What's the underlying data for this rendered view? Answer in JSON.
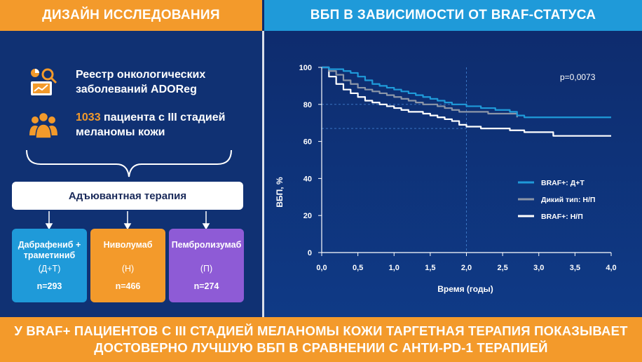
{
  "header": {
    "left_title": "ДИЗАЙН ИССЛЕДОВАНИЯ",
    "right_title": "ВБП В ЗАВИСИМОСТИ ОТ BRAF-СТАТУСА"
  },
  "design": {
    "registry_line1": "Реестр онкологических",
    "registry_line2": "заболеваний ADOReg",
    "patients_count": "1033",
    "patients_line1_rest": " пациента с III стадией",
    "patients_line2": "меланомы кожи",
    "therapy_label": "Адъювантная терапия",
    "arms": [
      {
        "name_line1": "Дабрафениб +",
        "name_line2": "траметиниб",
        "abbr": "(Д+Т)",
        "n": "n=293"
      },
      {
        "name_line1": "Ниволумаб",
        "name_line2": "",
        "abbr": "(Н)",
        "n": "n=466"
      },
      {
        "name_line1": "Пембролизумаб",
        "name_line2": "",
        "abbr": "(П)",
        "n": "n=274"
      }
    ]
  },
  "footer": {
    "line1": "У BRAF+ ПАЦИЕНТОВ С III СТАДИЕЙ МЕЛАНОМЫ КОЖИ ТАРГЕТНАЯ ТЕРАПИЯ ПОКАЗЫВАЕТ",
    "line2": "ДОСТОВЕРНО ЛУЧШУЮ ВБП В СРАВНЕНИИ С АНТИ-PD-1 ТЕРАПИЕЙ"
  },
  "colors": {
    "orange": "#f39a2b",
    "blue": "#1f9ad9",
    "purple": "#8e5bd6",
    "navy": "#103173"
  },
  "chart_data": {
    "type": "line",
    "title": "ВБП В ЗАВИСИМОСТИ ОТ BRAF-СТАТУСА",
    "xlabel": "Время (годы)",
    "ylabel": "ВБП, %",
    "xlim": [
      0,
      4
    ],
    "ylim": [
      0,
      100
    ],
    "xticks": [
      "0,0",
      "0,5",
      "1,0",
      "1,5",
      "2,0",
      "2,5",
      "3,0",
      "3,5",
      "4,0"
    ],
    "yticks": [
      "0",
      "20",
      "40",
      "60",
      "80",
      "100"
    ],
    "annotation": "p=0,0073",
    "legend_position": "right",
    "reference_x": 2.0,
    "series": [
      {
        "name": "BRAF+: Д+Т",
        "color": "#1f9ad9",
        "x": [
          0,
          0.1,
          0.2,
          0.3,
          0.4,
          0.5,
          0.6,
          0.7,
          0.8,
          0.9,
          1.0,
          1.1,
          1.2,
          1.3,
          1.4,
          1.5,
          1.6,
          1.7,
          1.8,
          1.9,
          2.0,
          2.1,
          2.2,
          2.3,
          2.4,
          2.5,
          2.6,
          2.7,
          2.8,
          3.0,
          3.5,
          4.0
        ],
        "values": [
          100,
          99,
          99,
          98,
          97,
          95,
          93,
          91,
          90,
          89,
          88,
          87,
          86,
          85,
          84,
          83,
          82,
          81,
          80,
          80,
          79,
          79,
          78,
          78,
          77,
          77,
          76,
          74,
          73,
          73,
          73,
          73
        ]
      },
      {
        "name": "Дикий тип: Н/П",
        "color": "#8c96a8",
        "x": [
          0,
          0.1,
          0.2,
          0.3,
          0.4,
          0.5,
          0.6,
          0.7,
          0.8,
          0.9,
          1.0,
          1.1,
          1.2,
          1.3,
          1.4,
          1.5,
          1.6,
          1.7,
          1.8,
          1.9,
          2.0,
          2.1,
          2.2,
          2.3,
          2.4,
          2.5,
          2.6,
          2.7
        ],
        "values": [
          100,
          98,
          96,
          93,
          91,
          89,
          88,
          87,
          86,
          85,
          84,
          83,
          82,
          81,
          80,
          80,
          79,
          78,
          77,
          76,
          76,
          76,
          76,
          75,
          75,
          75,
          75,
          73
        ]
      },
      {
        "name": "BRAF+: Н/П",
        "color": "#ffffff",
        "x": [
          0,
          0.1,
          0.2,
          0.3,
          0.4,
          0.5,
          0.6,
          0.7,
          0.8,
          0.9,
          1.0,
          1.1,
          1.2,
          1.3,
          1.4,
          1.5,
          1.6,
          1.7,
          1.8,
          1.9,
          2.0,
          2.2,
          2.4,
          2.6,
          2.8,
          3.0,
          3.2,
          3.5,
          4.0
        ],
        "values": [
          100,
          95,
          91,
          88,
          86,
          84,
          82,
          81,
          80,
          79,
          78,
          77,
          76,
          76,
          75,
          74,
          73,
          72,
          71,
          69,
          68,
          67,
          67,
          66,
          65,
          65,
          63,
          63,
          63
        ]
      }
    ]
  }
}
